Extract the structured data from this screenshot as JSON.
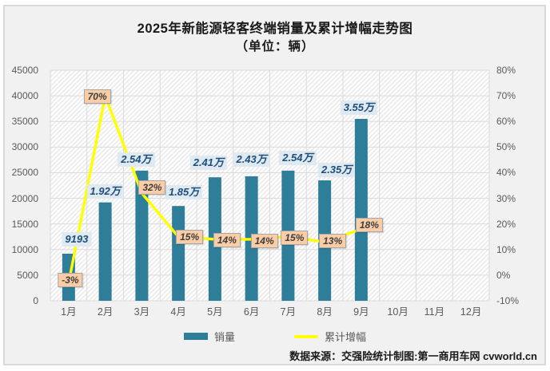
{
  "chart_data": {
    "type": "combo-bar-line",
    "title": "2025年新能源轻客终端销量及累计增幅走势图",
    "subtitle": "（单位：辆）",
    "categories": [
      "1月",
      "2月",
      "3月",
      "4月",
      "5月",
      "6月",
      "7月",
      "8月",
      "9月",
      "10月",
      "11月",
      "12月"
    ],
    "series": [
      {
        "name": "销量",
        "type": "bar",
        "color": "#2E7E99",
        "values": [
          9193,
          19200,
          25400,
          18500,
          24100,
          24300,
          25400,
          23500,
          35500,
          null,
          null,
          null
        ],
        "labels": [
          "9193",
          "1.92万",
          "2.54万",
          "1.85万",
          "2.41万",
          "2.43万",
          "2.54万",
          "2.35万",
          "3.55万",
          "",
          "",
          ""
        ]
      },
      {
        "name": "累计增幅",
        "type": "line",
        "color": "#FFFF00",
        "values": [
          -3,
          70,
          32,
          15,
          14,
          14,
          15,
          13,
          18,
          null,
          null,
          null
        ],
        "labels": [
          "-3%",
          "70%",
          "32%",
          "15%",
          "14%",
          "14%",
          "15%",
          "13%",
          "18%",
          "",
          "",
          ""
        ]
      }
    ],
    "left_axis": {
      "min": 0,
      "max": 45000,
      "ticks": [
        "45000",
        "40000",
        "35000",
        "30000",
        "25000",
        "20000",
        "15000",
        "10000",
        "5000",
        "0"
      ]
    },
    "right_axis": {
      "min": -10,
      "max": 80,
      "ticks": [
        "80%",
        "70%",
        "60%",
        "50%",
        "40%",
        "30%",
        "20%",
        "10%",
        "0%",
        "-10%"
      ]
    },
    "legend_position": "bottom",
    "grid": true
  },
  "footer": {
    "source": "数据来源：交强险统计制图:第一商用车网 cvworld.cn"
  },
  "colors": {
    "bar": "#2E7E99",
    "line": "#FFFF00",
    "sales_label_bg": "#DEE9F2",
    "sales_label_text": "#1F4E79",
    "growth_label_bg": "#FBCDA6",
    "growth_label_border": "#A6A6A6",
    "frame_background": "#F1F1F2",
    "grid": "#DBDBDB",
    "axis_text": "#595959"
  }
}
